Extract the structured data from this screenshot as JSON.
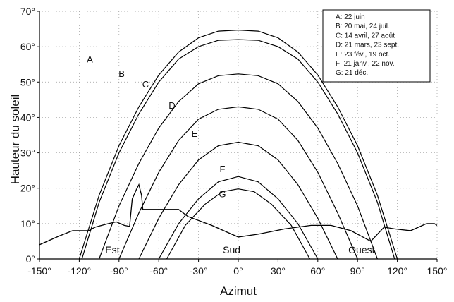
{
  "chart_data": {
    "type": "line",
    "xlabel": "Azimut",
    "ylabel": "Hauteur du soleil",
    "xlim": [
      -150,
      150
    ],
    "ylim": [
      0,
      70
    ],
    "x_ticks": [
      "-150°",
      "-120°",
      "-90°",
      "-60°",
      "-30°",
      "0°",
      "30°",
      "60°",
      "90°",
      "120°",
      "150°"
    ],
    "x_tick_values": [
      -150,
      -120,
      -90,
      -60,
      -30,
      0,
      30,
      60,
      90,
      120,
      150
    ],
    "y_ticks": [
      "0°",
      "10°",
      "20°",
      "30°",
      "40°",
      "50°",
      "60°",
      "70°"
    ],
    "y_tick_values": [
      0,
      10,
      20,
      30,
      40,
      50,
      60,
      70
    ],
    "grid": "dotted",
    "legend_position": "top-right",
    "series": [
      {
        "label": "A",
        "legend": "A:    22 juin",
        "label_at": [
          -112,
          55.5
        ],
        "points": [
          [
            -120,
            0
          ],
          [
            -105,
            18
          ],
          [
            -90,
            32
          ],
          [
            -75,
            43
          ],
          [
            -60,
            52
          ],
          [
            -45,
            58.5
          ],
          [
            -30,
            62.5
          ],
          [
            -15,
            64.4
          ],
          [
            0,
            64.7
          ],
          [
            15,
            64.4
          ],
          [
            30,
            62.5
          ],
          [
            45,
            58.5
          ],
          [
            60,
            52
          ],
          [
            75,
            43
          ],
          [
            90,
            32
          ],
          [
            105,
            18
          ],
          [
            120,
            0
          ]
        ]
      },
      {
        "label": "B",
        "legend": "B:    20 mai, 24 juil.",
        "label_at": [
          -88,
          51.5
        ],
        "points": [
          [
            -118,
            0
          ],
          [
            -105,
            16
          ],
          [
            -90,
            30
          ],
          [
            -75,
            41
          ],
          [
            -60,
            50
          ],
          [
            -45,
            56.5
          ],
          [
            -30,
            60
          ],
          [
            -15,
            61.8
          ],
          [
            0,
            62
          ],
          [
            15,
            61.8
          ],
          [
            30,
            60
          ],
          [
            45,
            56.5
          ],
          [
            60,
            50
          ],
          [
            75,
            41
          ],
          [
            90,
            30
          ],
          [
            105,
            16
          ],
          [
            118,
            0
          ]
        ]
      },
      {
        "label": "C",
        "legend": "C:    14 avril, 27 août",
        "label_at": [
          -70,
          48.5
        ],
        "points": [
          [
            -105,
            0
          ],
          [
            -90,
            15
          ],
          [
            -75,
            27
          ],
          [
            -60,
            37
          ],
          [
            -45,
            44.5
          ],
          [
            -30,
            49.5
          ],
          [
            -15,
            51.8
          ],
          [
            0,
            52.3
          ],
          [
            15,
            51.8
          ],
          [
            30,
            49.5
          ],
          [
            45,
            44.5
          ],
          [
            60,
            37
          ],
          [
            75,
            27
          ],
          [
            90,
            15
          ],
          [
            105,
            0
          ]
        ]
      },
      {
        "label": "D",
        "legend": "D:    21 mars, 23 sept.",
        "label_at": [
          -50,
          42.5
        ],
        "points": [
          [
            -90,
            0
          ],
          [
            -75,
            13
          ],
          [
            -60,
            24.5
          ],
          [
            -45,
            33.5
          ],
          [
            -30,
            39.5
          ],
          [
            -15,
            42.3
          ],
          [
            0,
            43
          ],
          [
            15,
            42.3
          ],
          [
            30,
            39.5
          ],
          [
            45,
            33.5
          ],
          [
            60,
            24.5
          ],
          [
            75,
            13
          ],
          [
            90,
            0
          ]
        ]
      },
      {
        "label": "E",
        "legend": "E:    23 fév., 19 oct.",
        "label_at": [
          -33,
          34.5
        ],
        "points": [
          [
            -75,
            0
          ],
          [
            -60,
            11.5
          ],
          [
            -45,
            21
          ],
          [
            -30,
            28
          ],
          [
            -15,
            32
          ],
          [
            0,
            33
          ],
          [
            15,
            32
          ],
          [
            30,
            28
          ],
          [
            45,
            21
          ],
          [
            60,
            11.5
          ],
          [
            75,
            0
          ]
        ]
      },
      {
        "label": "F",
        "legend": "F:    21 janv., 22 nov.",
        "label_at": [
          -12,
          24.5
        ],
        "points": [
          [
            -60,
            0
          ],
          [
            -45,
            10
          ],
          [
            -30,
            17
          ],
          [
            -15,
            21.8
          ],
          [
            0,
            23.3
          ],
          [
            15,
            21.8
          ],
          [
            30,
            17
          ],
          [
            45,
            10
          ],
          [
            60,
            0
          ]
        ]
      },
      {
        "label": "G",
        "legend": "G:    21 déc.",
        "label_at": [
          -12,
          17.5
        ],
        "points": [
          [
            -54,
            0
          ],
          [
            -40,
            9.5
          ],
          [
            -25,
            15.5
          ],
          [
            -12,
            19
          ],
          [
            0,
            19.8
          ],
          [
            12,
            19
          ],
          [
            25,
            15.5
          ],
          [
            40,
            9.5
          ],
          [
            54,
            0
          ]
        ]
      }
    ],
    "horizon": [
      [
        -150,
        4
      ],
      [
        -135,
        6.5
      ],
      [
        -125,
        8
      ],
      [
        -113,
        8
      ],
      [
        -108,
        9
      ],
      [
        -98,
        10
      ],
      [
        -92,
        10.5
      ],
      [
        -86,
        9.5
      ],
      [
        -82,
        9.2
      ],
      [
        -80,
        17
      ],
      [
        -77,
        19.5
      ],
      [
        -75,
        21
      ],
      [
        -73,
        18
      ],
      [
        -72,
        14
      ],
      [
        -65,
        14
      ],
      [
        -55,
        14
      ],
      [
        -45,
        14
      ],
      [
        -38,
        12
      ],
      [
        -20,
        9.5
      ],
      [
        -5,
        7
      ],
      [
        0,
        6.2
      ],
      [
        15,
        7
      ],
      [
        35,
        8.5
      ],
      [
        55,
        9.5
      ],
      [
        70,
        9.5
      ],
      [
        85,
        8
      ],
      [
        100,
        5
      ],
      [
        110,
        9
      ],
      [
        118,
        8.5
      ],
      [
        130,
        8
      ],
      [
        142,
        10
      ],
      [
        148,
        10
      ],
      [
        150,
        9.5
      ]
    ],
    "direction_labels": [
      {
        "text": "Est",
        "x": -95
      },
      {
        "text": "Sud",
        "x": -5
      },
      {
        "text": "Ouest",
        "x": 93
      }
    ]
  }
}
